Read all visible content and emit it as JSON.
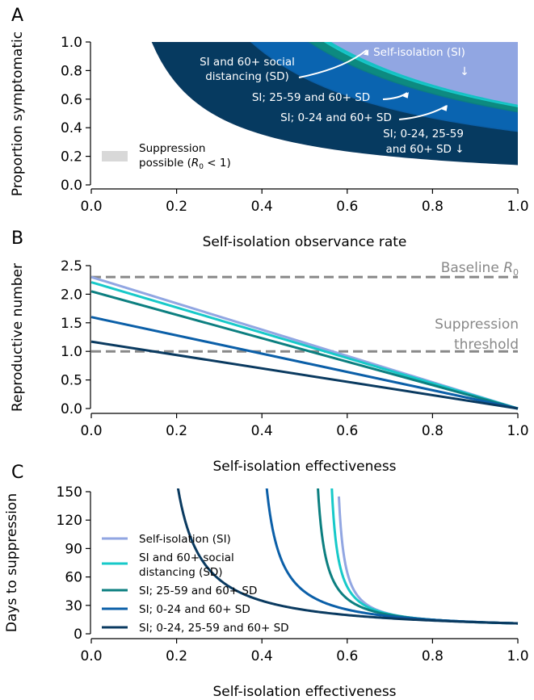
{
  "colors": {
    "si": "#91a6e2",
    "si60": "#17c9c9",
    "si2559": "#0c7f80",
    "si024": "#0b5fa8",
    "siall": "#0a3a60",
    "fill_si": "#91a6e2",
    "fill_si60": "#15c1c4",
    "fill_si2559": "#0d8a80",
    "fill_si024": "#0a64b0",
    "fill_siall": "#063a60",
    "ref": "#888888",
    "suppression_patch": "#d8d8d8"
  },
  "chart_data": [
    {
      "panel": "A",
      "type": "area",
      "xlabel": "Self-isolation observance rate",
      "ylabel": "Proportion symptomatic",
      "xlim": [
        0,
        1
      ],
      "ylim": [
        0,
        1
      ],
      "xticks": [
        "0.0",
        "0.2",
        "0.4",
        "0.6",
        "0.8",
        "1.0"
      ],
      "yticks": [
        "0.0",
        "0.2",
        "0.4",
        "0.6",
        "0.8",
        "1.0"
      ],
      "legend": {
        "label_line1": "Suppression",
        "label_line2": "possible (",
        "label_r0": "R",
        "label_sub": "0",
        "label_rest": " < 1)"
      },
      "boundary_series": [
        {
          "key": "siall",
          "required_product": 0.1429
        },
        {
          "key": "si024",
          "required_product": 0.375
        },
        {
          "key": "si2559",
          "required_product": 0.5111
        },
        {
          "key": "si60",
          "required_product": 0.5476
        },
        {
          "key": "si",
          "required_product": 0.5652
        }
      ],
      "annotations": [
        {
          "line1": "Self-isolation (SI)",
          "line2": "↓"
        },
        {
          "line1": "SI and 60+ social",
          "line2": "distancing (SD)"
        },
        {
          "line1": "SI; 25-59 and 60+ SD"
        },
        {
          "line1": "SI; 0-24 and 60+ SD"
        },
        {
          "line1": "SI; 0-24, 25-59",
          "line2": "and 60+ SD ↓"
        }
      ]
    },
    {
      "panel": "B",
      "type": "line",
      "xlabel": "Self-isolation effectiveness",
      "ylabel": "Reproductive number",
      "xlim": [
        0,
        1
      ],
      "ylim": [
        0,
        2.5
      ],
      "xticks": [
        "0.0",
        "0.2",
        "0.4",
        "0.6",
        "0.8",
        "1.0"
      ],
      "yticks": [
        "0.0",
        "0.5",
        "1.0",
        "1.5",
        "2.0",
        "2.5"
      ],
      "reference_lines": [
        {
          "y": 2.3,
          "label": "Baseline ",
          "label_r": "R",
          "label_sub": "0"
        },
        {
          "y": 1.0,
          "label_line1": "Suppression",
          "label_line2": "threshold"
        }
      ],
      "series": [
        {
          "key": "si",
          "x": [
            0,
            1
          ],
          "y": [
            2.3,
            0.0
          ]
        },
        {
          "key": "si60",
          "x": [
            0,
            1
          ],
          "y": [
            2.21,
            0.0
          ]
        },
        {
          "key": "si2559",
          "x": [
            0,
            1
          ],
          "y": [
            2.05,
            0.0
          ]
        },
        {
          "key": "si024",
          "x": [
            0,
            1
          ],
          "y": [
            1.6,
            0.0
          ]
        },
        {
          "key": "siall",
          "x": [
            0,
            1
          ],
          "y": [
            1.17,
            0.0
          ]
        }
      ]
    },
    {
      "panel": "C",
      "type": "line",
      "xlabel": "Self-isolation effectiveness",
      "ylabel": "Days to suppression",
      "xlim": [
        0,
        1
      ],
      "ylim": [
        0,
        150
      ],
      "xticks": [
        "0.0",
        "0.2",
        "0.4",
        "0.6",
        "0.8",
        "1.0"
      ],
      "yticks": [
        "0",
        "30",
        "60",
        "90",
        "120",
        "150"
      ],
      "series": [
        {
          "key": "si",
          "name": "Self-isolation (SI)",
          "x_threshold": 0.5652,
          "scale": 4.54
        },
        {
          "key": "si60",
          "name": "SI and 60+ social distancing (SD)",
          "name_line1": "SI and 60+ social",
          "name_line2": "distancing (SD)",
          "x_threshold": 0.5476,
          "scale": 4.98
        },
        {
          "key": "si2559",
          "name": "SI; 25-59 and 60+ SD",
          "x_threshold": 0.5111,
          "scale": 5.78
        },
        {
          "key": "si024",
          "name": "SI; 0-24 and 60+ SD",
          "x_threshold": 0.375,
          "scale": 8.41
        },
        {
          "key": "siall",
          "name": "SI; 0-24, 25-59 and 60+ SD",
          "x_threshold": 0.1429,
          "scale": 10.43
        }
      ]
    }
  ],
  "panel_labels": [
    "A",
    "B",
    "C"
  ]
}
